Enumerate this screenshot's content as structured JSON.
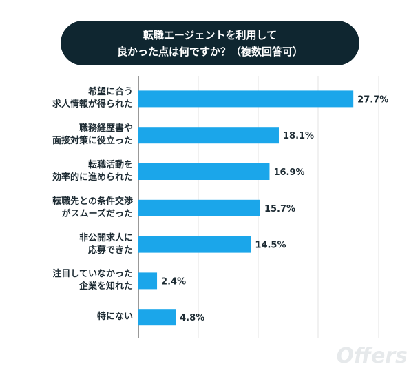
{
  "chart_data": {
    "type": "bar",
    "orientation": "horizontal",
    "title": "転職エージェントを利用して\n良かった点は何ですか？（複数回答可）",
    "categories": [
      "希望に合う\n求人情報が得られた",
      "職務経歴書や\n面接対策に役立った",
      "転職活動を\n効率的に進められた",
      "転職先との条件交渉\nがスムーズだった",
      "非公開求人に\n応募できた",
      "注目していなかった\n企業を知れた",
      "特にない"
    ],
    "values": [
      27.7,
      18.1,
      16.9,
      15.7,
      14.5,
      2.4,
      4.8
    ],
    "value_labels": [
      "27.7%",
      "18.1%",
      "16.9%",
      "15.7%",
      "14.5%",
      "2.4%",
      "4.8%"
    ],
    "color": "#1ba6ea",
    "brand": "Offers"
  }
}
